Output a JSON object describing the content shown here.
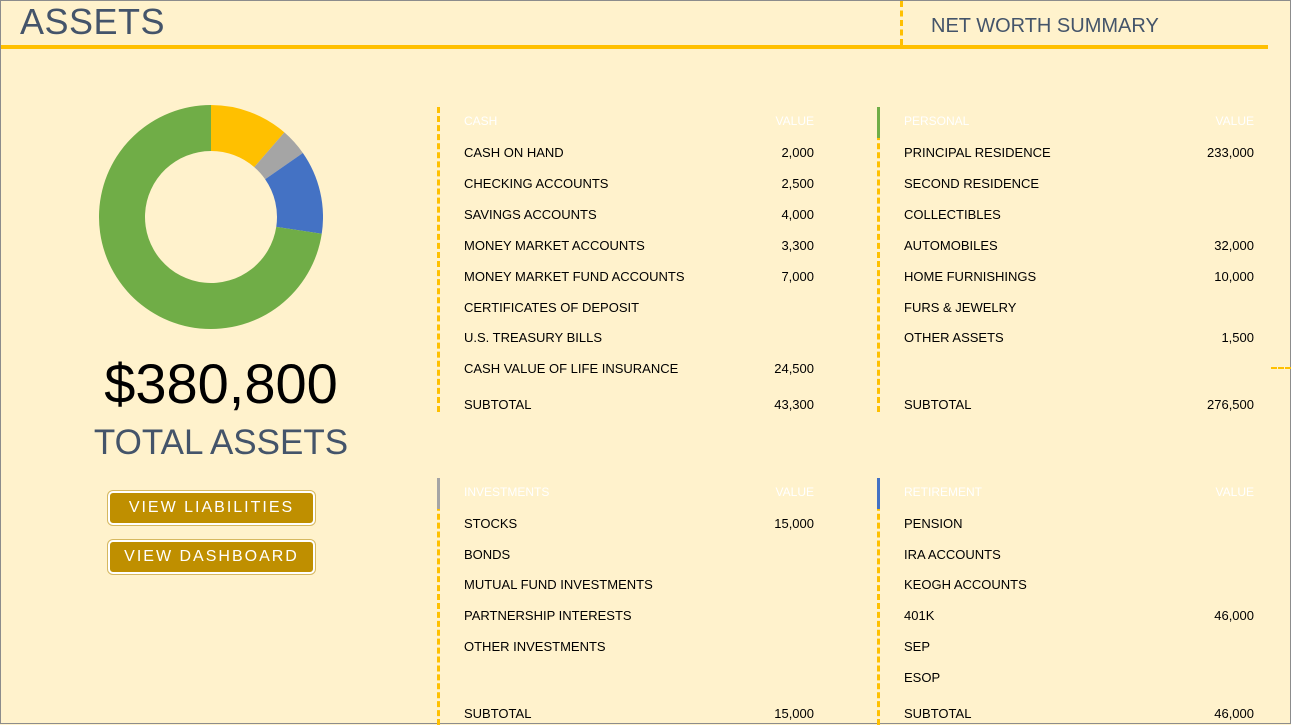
{
  "header": {
    "title": "ASSETS",
    "summary_link": "NET WORTH SUMMARY"
  },
  "summary": {
    "total_amount": "$380,800",
    "total_label": "TOTAL ASSETS"
  },
  "buttons": {
    "view_liabilities": "VIEW LIABILITIES",
    "view_dashboard": "VIEW DASHBOARD"
  },
  "colors": {
    "cash": "#FFC000",
    "investments": "#A5A5A5",
    "retirement": "#4472C4",
    "personal": "#70AD47",
    "title": "#44546A",
    "button": "#BF8F00",
    "background": "#FFF2CC"
  },
  "chart_data": {
    "type": "pie",
    "categories": [
      "Cash",
      "Investments",
      "Retirement",
      "Personal"
    ],
    "values": [
      43300,
      15000,
      46000,
      276500
    ],
    "colors": [
      "#FFC000",
      "#A5A5A5",
      "#4472C4",
      "#70AD47"
    ],
    "donut": true
  },
  "sections": {
    "cash": {
      "heading": "CASH",
      "value_heading": "VALUE",
      "rows": [
        {
          "label": "CASH ON HAND",
          "value": "2,000"
        },
        {
          "label": "CHECKING ACCOUNTS",
          "value": "2,500"
        },
        {
          "label": "SAVINGS ACCOUNTS",
          "value": "4,000"
        },
        {
          "label": "MONEY MARKET ACCOUNTS",
          "value": "3,300"
        },
        {
          "label": "MONEY MARKET FUND ACCOUNTS",
          "value": "7,000"
        },
        {
          "label": "CERTIFICATES OF DEPOSIT",
          "value": ""
        },
        {
          "label": "U.S. TREASURY BILLS",
          "value": ""
        },
        {
          "label": "CASH VALUE OF LIFE INSURANCE",
          "value": "24,500"
        }
      ],
      "subtotal_label": "SUBTOTAL",
      "subtotal": "43,300"
    },
    "personal": {
      "heading": "PERSONAL",
      "value_heading": "VALUE",
      "rows": [
        {
          "label": "PRINCIPAL RESIDENCE",
          "value": "233,000"
        },
        {
          "label": "SECOND RESIDENCE",
          "value": ""
        },
        {
          "label": "COLLECTIBLES",
          "value": ""
        },
        {
          "label": "AUTOMOBILES",
          "value": "32,000"
        },
        {
          "label": "HOME FURNISHINGS",
          "value": "10,000"
        },
        {
          "label": "FURS & JEWELRY",
          "value": ""
        },
        {
          "label": "OTHER ASSETS",
          "value": "1,500"
        }
      ],
      "subtotal_label": "SUBTOTAL",
      "subtotal": "276,500"
    },
    "investments": {
      "heading": "INVESTMENTS",
      "value_heading": "VALUE",
      "rows": [
        {
          "label": "STOCKS",
          "value": "15,000"
        },
        {
          "label": "BONDS",
          "value": ""
        },
        {
          "label": "MUTUAL FUND INVESTMENTS",
          "value": ""
        },
        {
          "label": "PARTNERSHIP INTERESTS",
          "value": ""
        },
        {
          "label": "OTHER INVESTMENTS",
          "value": ""
        }
      ],
      "subtotal_label": "SUBTOTAL",
      "subtotal": "15,000"
    },
    "retirement": {
      "heading": "RETIREMENT",
      "value_heading": "VALUE",
      "rows": [
        {
          "label": "PENSION",
          "value": ""
        },
        {
          "label": "IRA ACCOUNTS",
          "value": ""
        },
        {
          "label": "KEOGH ACCOUNTS",
          "value": ""
        },
        {
          "label": "401K",
          "value": "46,000"
        },
        {
          "label": "SEP",
          "value": ""
        },
        {
          "label": "ESOP",
          "value": ""
        }
      ],
      "subtotal_label": "SUBTOTAL",
      "subtotal": "46,000"
    }
  }
}
